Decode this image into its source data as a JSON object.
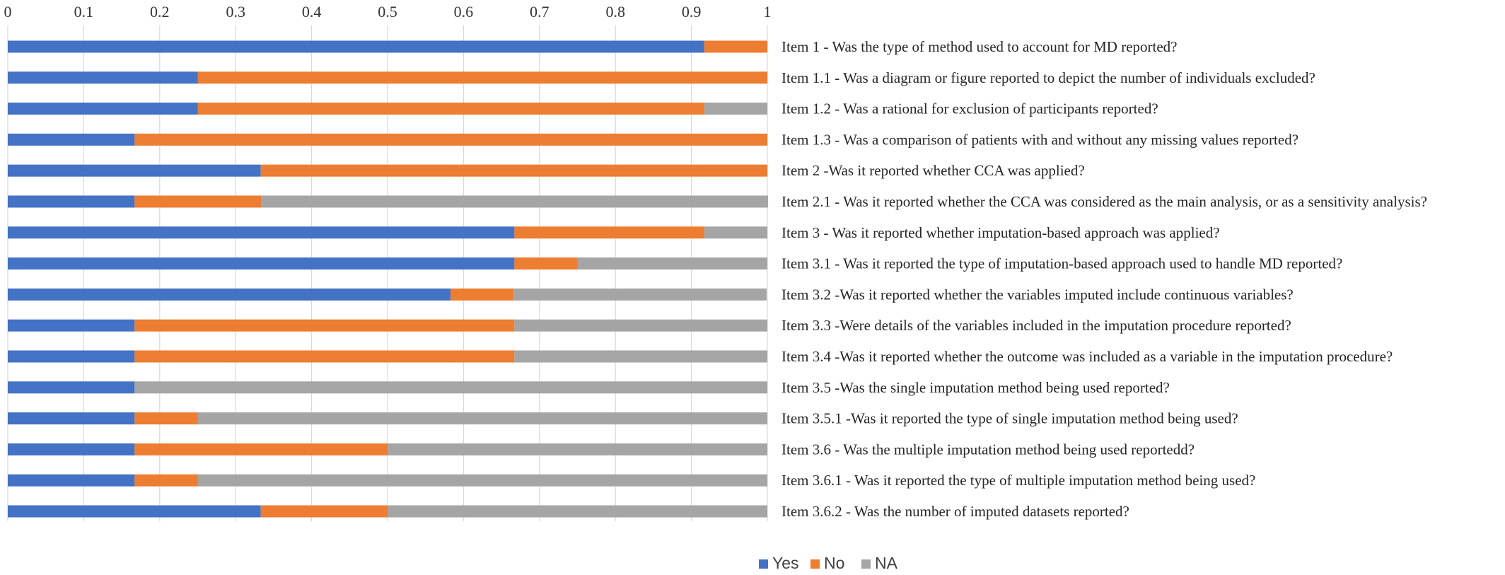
{
  "chart_data": {
    "type": "bar",
    "orientation": "horizontal",
    "stacked": true,
    "normalized": true,
    "xlim": [
      0,
      1
    ],
    "xticks": [
      "0",
      "0.1",
      "0.2",
      "0.3",
      "0.4",
      "0.5",
      "0.6",
      "0.7",
      "0.8",
      "0.9",
      "1"
    ],
    "x_axis_position": "top",
    "grid": true,
    "legend_position": "bottom",
    "categories": [
      "Item 1 - Was the type of method used to account for MD reported?",
      "Item 1.1 - Was a diagram or figure reported to depict the number of individuals excluded?",
      "Item 1.2 - Was a rational for exclusion of participants reported?",
      "Item 1.3 - Was a comparison of patients with and without any missing values reported?",
      "Item 2 -Was it reported whether CCA was applied?",
      "Item 2.1 - Was it reported whether the CCA was considered as the main analysis, or as a sensitivity analysis?",
      "Item 3 - Was it reported whether imputation-based approach was applied?",
      "Item 3.1 - Was it reported the type of imputation-based approach used to handle MD reported?",
      "Item 3.2 -Was it reported whether the variables imputed include continuous variables?",
      "Item 3.3 -Were details of the variables included in the imputation procedure reported?",
      "Item 3.4 -Was it reported whether the outcome was included as a variable in the imputation procedure?",
      "Item 3.5 -Was the single imputation method being used reported?",
      "Item 3.5.1 -Was it reported the type of single imputation method being used?",
      "Item 3.6 - Was the multiple imputation method being used reportedd?",
      "Item 3.6.1 - Was it reported the type of multiple imputation method being used?",
      "Item 3.6.2 - Was the number of imputed datasets reported?"
    ],
    "series": [
      {
        "name": "Yes",
        "color": "#4472C4",
        "values": [
          0.917,
          0.25,
          0.25,
          0.167,
          0.333,
          0.167,
          0.667,
          0.667,
          0.583,
          0.167,
          0.167,
          0.167,
          0.167,
          0.167,
          0.167,
          0.333
        ]
      },
      {
        "name": "No",
        "color": "#ED7D31",
        "values": [
          0.083,
          0.75,
          0.667,
          0.833,
          0.667,
          0.167,
          0.25,
          0.083,
          0.083,
          0.5,
          0.5,
          0.0,
          0.083,
          0.333,
          0.083,
          0.167
        ]
      },
      {
        "name": "NA",
        "color": "#A5A5A5",
        "values": [
          0.0,
          0.0,
          0.083,
          0.0,
          0.0,
          0.667,
          0.083,
          0.25,
          0.333,
          0.333,
          0.333,
          0.833,
          0.75,
          0.5,
          0.75,
          0.5
        ]
      }
    ]
  }
}
